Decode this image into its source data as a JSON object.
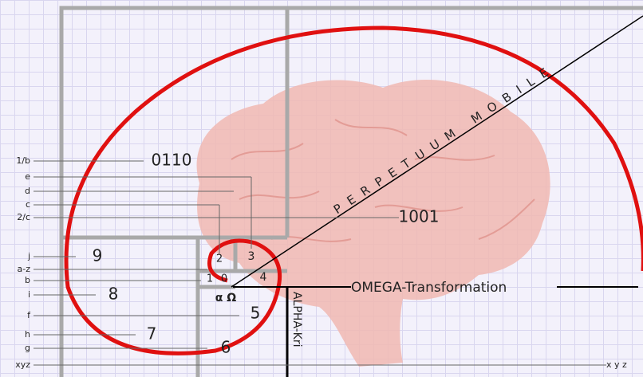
{
  "left_labels": [
    "1/b",
    "e",
    "d",
    "c",
    "2/c",
    "j",
    "a-z",
    "b",
    "i",
    "f",
    "h",
    "g",
    "xyz"
  ],
  "numbers": [
    "0110",
    "1001",
    "9",
    "8",
    "7",
    "6",
    "5",
    "4",
    "3",
    "2",
    "1",
    "0"
  ],
  "center": "α Ω",
  "omega": "OMEGA-Transformation",
  "alpha": "ALPHA-Kri",
  "right_label": "x y z",
  "diagonal": "PERPETUUM MOBILE"
}
